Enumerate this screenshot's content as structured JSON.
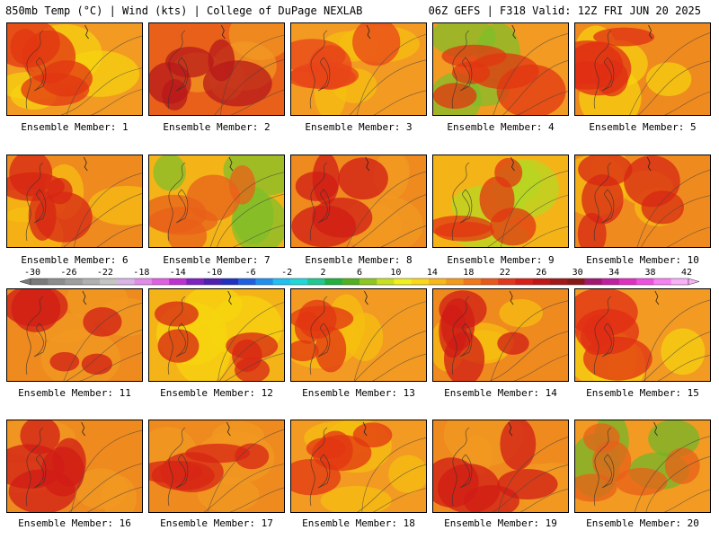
{
  "header": {
    "left_title": "850mb Temp (°C) | Wind (kts) | College of DuPage NEXLAB",
    "right_title": "06Z GEFS | F318 Valid: 12Z FRI JUN 20 2025"
  },
  "panels": [
    {
      "label": "Ensemble Member: 1",
      "base": "#f29a22",
      "hot": "#e23512",
      "cool": "#f7d40e"
    },
    {
      "label": "Ensemble Member: 2",
      "base": "#e8601a",
      "hot": "#b8181a",
      "cool": "#f29a22"
    },
    {
      "label": "Ensemble Member: 3",
      "base": "#f29a22",
      "hot": "#e84418",
      "cool": "#f7c010"
    },
    {
      "label": "Ensemble Member: 4",
      "base": "#f29a22",
      "hot": "#e23512",
      "cool": "#7cbf2a"
    },
    {
      "label": "Ensemble Member: 5",
      "base": "#ef8a1e",
      "hot": "#e02e14",
      "cool": "#f7d40e"
    },
    {
      "label": "Ensemble Member: 6",
      "base": "#ef8a1e",
      "hot": "#d72514",
      "cool": "#f7c010"
    },
    {
      "label": "Ensemble Member: 7",
      "base": "#f4b418",
      "hot": "#e8601a",
      "cool": "#7cbf2a"
    },
    {
      "label": "Ensemble Member: 8",
      "base": "#ef8a1e",
      "hot": "#d01c16",
      "cool": "#f29a22"
    },
    {
      "label": "Ensemble Member: 9",
      "base": "#f4b418",
      "hot": "#e23512",
      "cool": "#b4d822"
    },
    {
      "label": "Ensemble Member: 10",
      "base": "#ef8a1e",
      "hot": "#d72514",
      "cool": "#f7c010"
    },
    {
      "label": "Ensemble Member: 11",
      "base": "#ef8a1e",
      "hot": "#d01c16",
      "cool": "#f29a22"
    },
    {
      "label": "Ensemble Member: 12",
      "base": "#f4b418",
      "hot": "#d72514",
      "cool": "#f7d40e"
    },
    {
      "label": "Ensemble Member: 13",
      "base": "#f29a22",
      "hot": "#e23512",
      "cool": "#f7c010"
    },
    {
      "label": "Ensemble Member: 14",
      "base": "#ef8a1e",
      "hot": "#d01c16",
      "cool": "#f7c010"
    },
    {
      "label": "Ensemble Member: 15",
      "base": "#f29a22",
      "hot": "#e02e14",
      "cool": "#f7d40e"
    },
    {
      "label": "Ensemble Member: 16",
      "base": "#ef8a1e",
      "hot": "#d01c16",
      "cool": "#f29a22"
    },
    {
      "label": "Ensemble Member: 17",
      "base": "#ef8a1e",
      "hot": "#d72514",
      "cool": "#f29a22"
    },
    {
      "label": "Ensemble Member: 18",
      "base": "#f29a22",
      "hot": "#e23512",
      "cool": "#f7c010"
    },
    {
      "label": "Ensemble Member: 19",
      "base": "#ef8a1e",
      "hot": "#d01c16",
      "cool": "#f29a22"
    },
    {
      "label": "Ensemble Member: 20",
      "base": "#f29a22",
      "hot": "#e8601a",
      "cool": "#6ab82a"
    }
  ],
  "colorbar": {
    "labels": [
      "-30",
      "-26",
      "-22",
      "-18",
      "-14",
      "-10",
      "-6",
      "-2",
      "2",
      "6",
      "10",
      "14",
      "18",
      "22",
      "26",
      "30",
      "34",
      "38",
      "42"
    ],
    "colors": [
      "#7a7a7a",
      "#8c8c8c",
      "#9e9e9e",
      "#b0b0b0",
      "#c4c4c4",
      "#d8b4e8",
      "#e08ce8",
      "#e060e0",
      "#c030d0",
      "#8020c0",
      "#5020b0",
      "#2030c0",
      "#2060e0",
      "#2090f0",
      "#20c0f0",
      "#20d8d8",
      "#20c890",
      "#20b040",
      "#50b020",
      "#8cc820",
      "#c8e020",
      "#f0f020",
      "#f8d818",
      "#f8b818",
      "#f49a18",
      "#f07818",
      "#e85818",
      "#e03818",
      "#d82018",
      "#c01818",
      "#a01818",
      "#881818",
      "#a01870",
      "#c020a0",
      "#e030c0",
      "#f050e0",
      "#f880f0",
      "#f8b0f8"
    ]
  }
}
